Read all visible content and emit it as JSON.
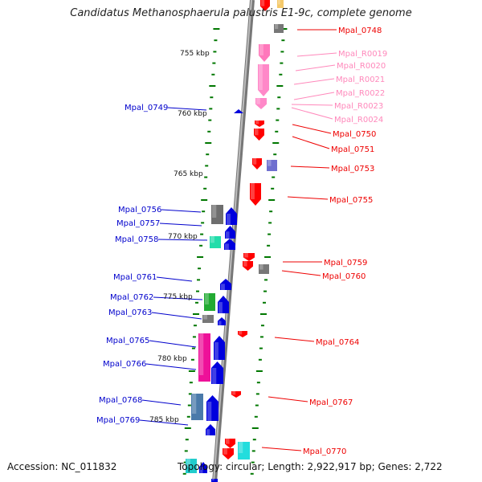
{
  "title": "Candidatus Methanosphaerula palustris E1-9c, complete genome",
  "accession": "Accession: NC_011832",
  "topology": "Topology: circular; Length: 2,922,917 bp; Genes: 2,722",
  "colors": {
    "left_label": "#0000cc",
    "right_label": "#ee0000",
    "rna_label": "#ff88bb",
    "tick": "#007700",
    "backbone": "#888888"
  },
  "scale_labels": [
    "755 kbp",
    "760 kbp",
    "765 kbp",
    "770 kbp",
    "775 kbp",
    "780 kbp",
    "785 kbp"
  ],
  "left_labels": [
    "Mpal_0749",
    "Mpal_0756",
    "Mpal_0757",
    "Mpal_0758",
    "Mpal_0761",
    "Mpal_0762",
    "Mpal_0763",
    "Mpal_0765",
    "Mpal_0766",
    "Mpal_0768",
    "Mpal_0769"
  ],
  "right_labels": [
    "Mpal_0748",
    "Mpal_R0019",
    "Mpal_R0020",
    "Mpal_R0021",
    "Mpal_R0022",
    "Mpal_R0023",
    "Mpal_R0024",
    "Mpal_0750",
    "Mpal_0751",
    "Mpal_0753",
    "Mpal_0755",
    "Mpal_0759",
    "Mpal_0760",
    "Mpal_0764",
    "Mpal_0767",
    "Mpal_0770"
  ]
}
